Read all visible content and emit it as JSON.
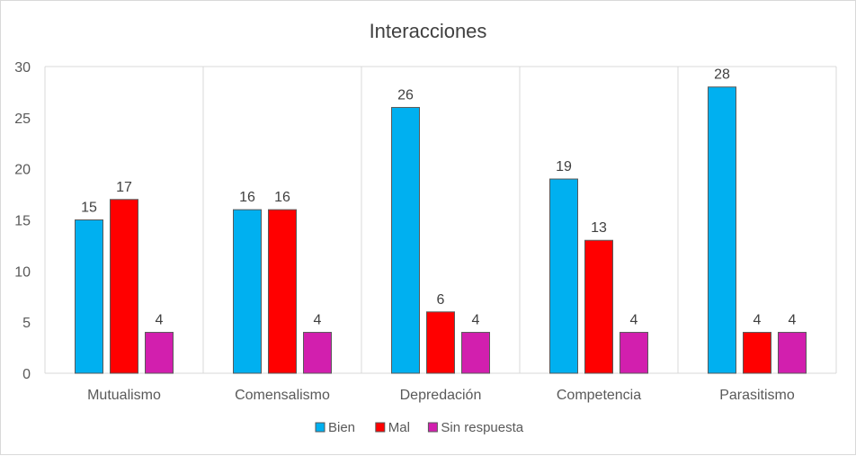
{
  "chart_data": {
    "type": "bar",
    "title": "Interacciones",
    "categories": [
      "Mutualismo",
      "Comensalismo",
      "Depredación",
      "Competencia",
      "Parasitismo"
    ],
    "series": [
      {
        "name": "Bien",
        "color": "#00b0f0",
        "values": [
          15,
          16,
          26,
          19,
          28
        ]
      },
      {
        "name": "Mal",
        "color": "#ff0000",
        "values": [
          17,
          16,
          6,
          13,
          4
        ]
      },
      {
        "name": "Sin respuesta",
        "color": "#d21fae",
        "values": [
          4,
          4,
          4,
          4,
          4
        ]
      }
    ],
    "ylim": [
      0,
      30
    ],
    "yticks": [
      0,
      5,
      10,
      15,
      20,
      25,
      30
    ],
    "xlabel": "",
    "ylabel": "",
    "legend_position": "bottom",
    "grid": "vertical category separators"
  }
}
